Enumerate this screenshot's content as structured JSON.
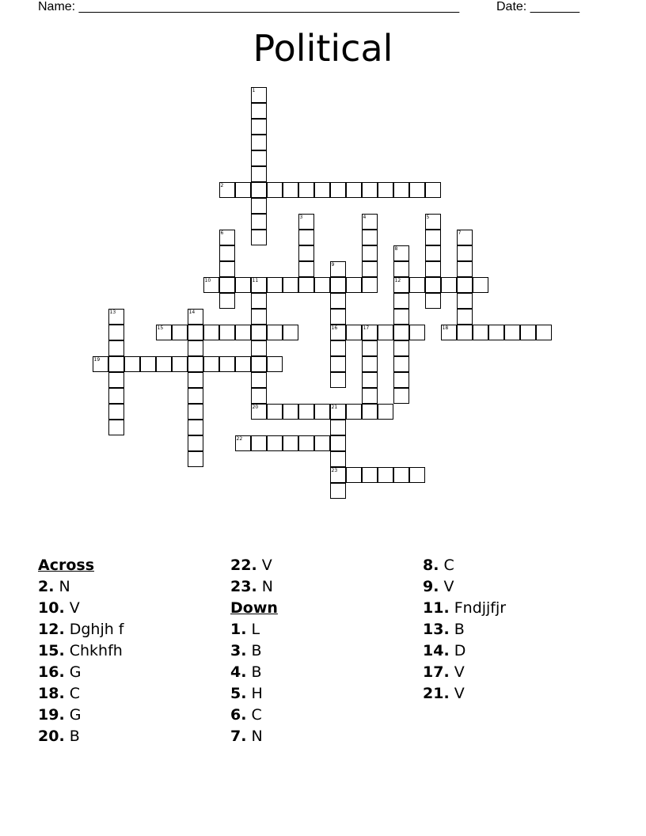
{
  "header": {
    "name_label": "Name: ______________________________________________________",
    "date_label": "Date: _______"
  },
  "title": "Political",
  "across_heading": "Across",
  "down_heading": "Down",
  "clues": {
    "across": [
      {
        "num": "2.",
        "text": "N"
      },
      {
        "num": "10.",
        "text": "V"
      },
      {
        "num": "12.",
        "text": "Dghjh f"
      },
      {
        "num": "15.",
        "text": "Chkhfh"
      },
      {
        "num": "16.",
        "text": "G"
      },
      {
        "num": "18.",
        "text": "C"
      },
      {
        "num": "19.",
        "text": "G"
      },
      {
        "num": "20.",
        "text": "B"
      },
      {
        "num": "22.",
        "text": "V"
      },
      {
        "num": "23.",
        "text": "N"
      }
    ],
    "down": [
      {
        "num": "1.",
        "text": "L"
      },
      {
        "num": "3.",
        "text": "B"
      },
      {
        "num": "4.",
        "text": "B"
      },
      {
        "num": "5.",
        "text": "H"
      },
      {
        "num": "6.",
        "text": "C"
      },
      {
        "num": "7.",
        "text": "N"
      },
      {
        "num": "8.",
        "text": "C"
      },
      {
        "num": "9.",
        "text": "V"
      },
      {
        "num": "11.",
        "text": "Fndjjfjr"
      },
      {
        "num": "13.",
        "text": "B"
      },
      {
        "num": "14.",
        "text": "D"
      },
      {
        "num": "17.",
        "text": "V"
      },
      {
        "num": "21.",
        "text": "V"
      }
    ]
  },
  "grid_numbers": [
    "1",
    "2",
    "3",
    "4",
    "5",
    "6",
    "7",
    "8",
    "9",
    "10",
    "11",
    "12",
    "13",
    "14",
    "15",
    "16",
    "17",
    "18",
    "19",
    "20",
    "21",
    "22",
    "23"
  ]
}
